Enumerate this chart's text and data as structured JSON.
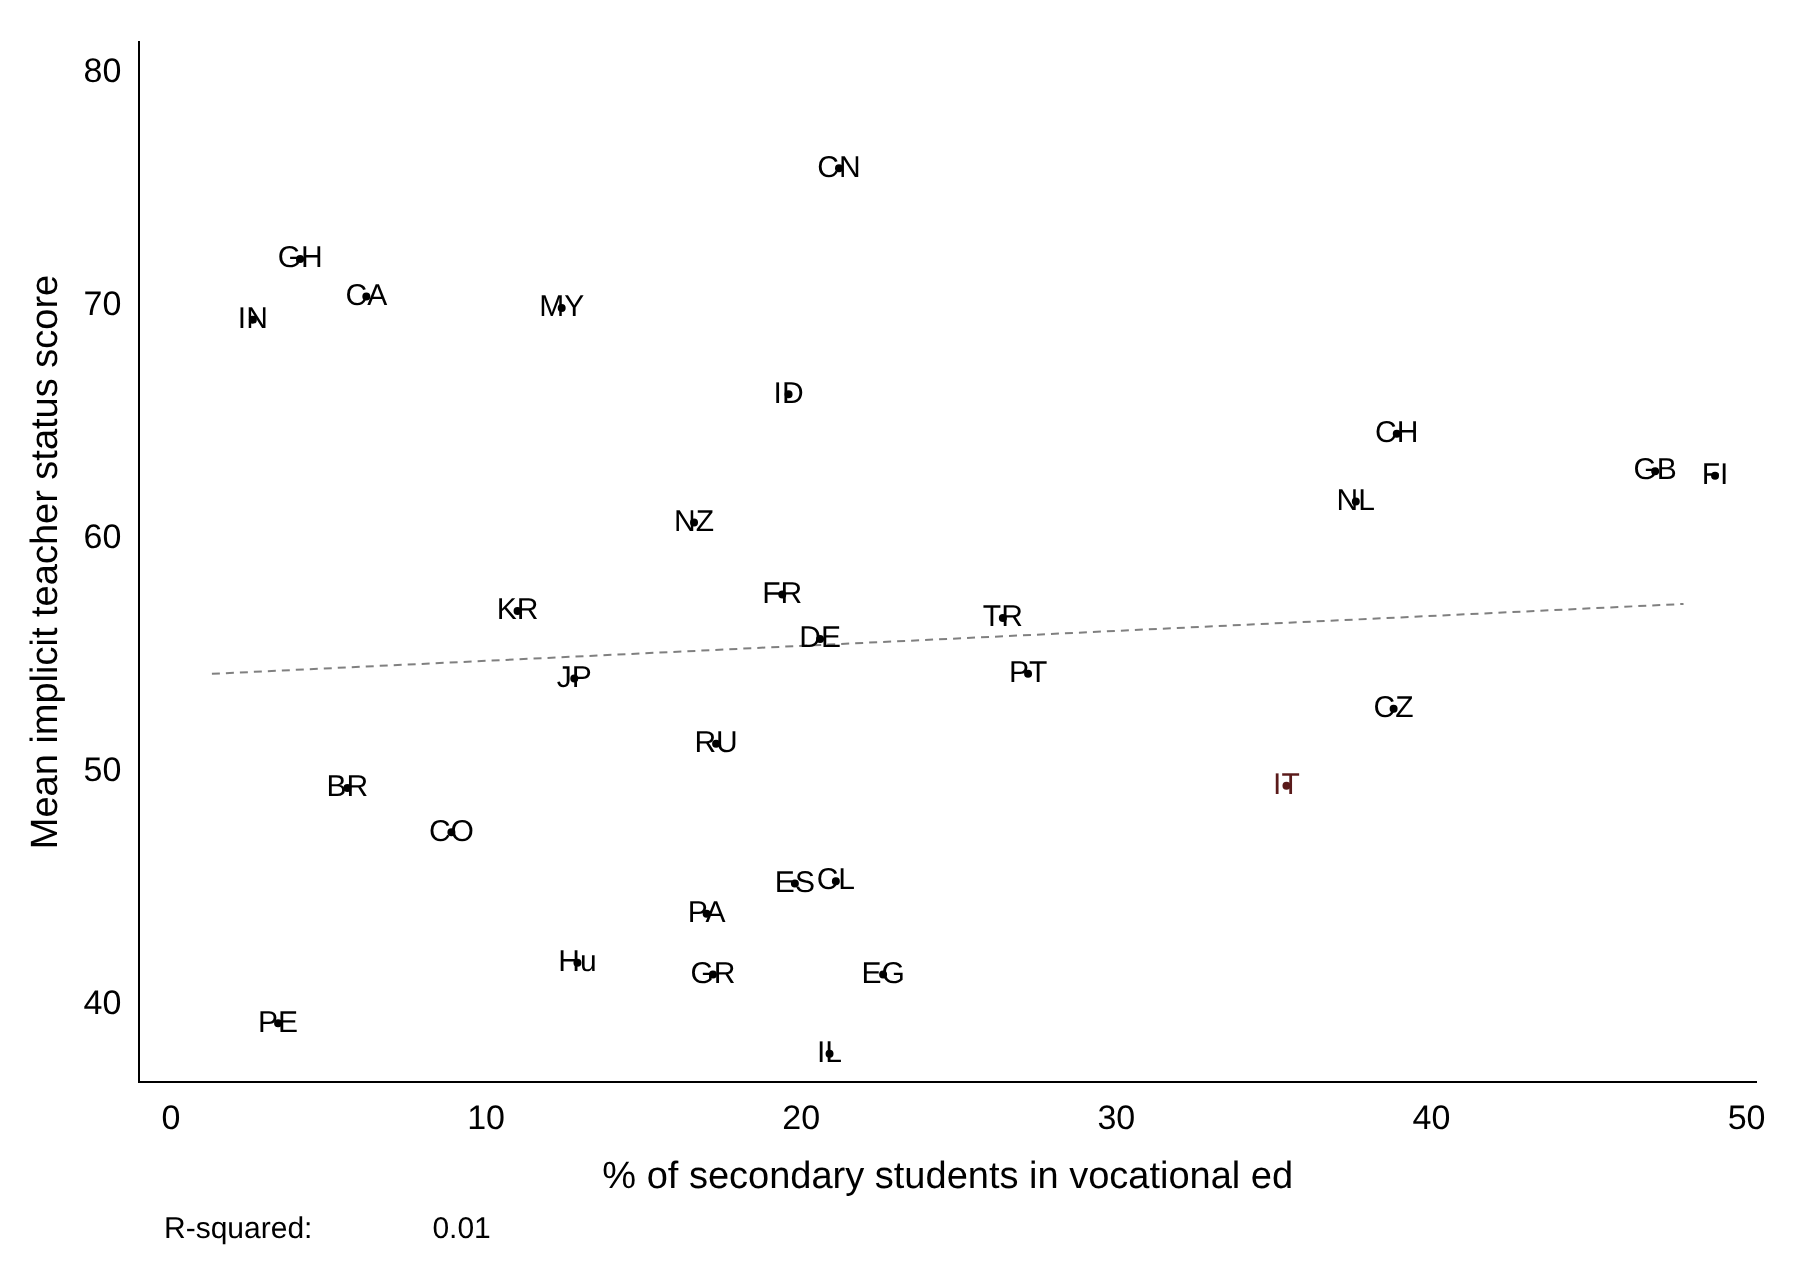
{
  "chart_data": {
    "type": "scatter",
    "xlabel": "% of secondary students in vocational ed",
    "ylabel": "Mean implicit teacher status score",
    "xlim": [
      -1,
      50.3
    ],
    "ylim": [
      36.7,
      81.3
    ],
    "xticks": [
      0,
      10,
      20,
      30,
      40,
      50
    ],
    "yticks": [
      40,
      50,
      60,
      70,
      80
    ],
    "grid": false,
    "legend": false,
    "annotations": [
      "R-squared:",
      "0.01"
    ],
    "series": [
      {
        "name": "CN",
        "color": "#000000",
        "x": [
          21.2
        ],
        "values": [
          75.9
        ]
      },
      {
        "name": "GH",
        "color": "#000000",
        "x": [
          4.1
        ],
        "values": [
          72.0
        ]
      },
      {
        "name": "CA",
        "color": "#000000",
        "x": [
          6.2
        ],
        "values": [
          70.4
        ]
      },
      {
        "name": "IN",
        "color": "#000000",
        "x": [
          2.6
        ],
        "values": [
          69.4
        ]
      },
      {
        "name": "MY",
        "color": "#000000",
        "x": [
          12.4
        ],
        "values": [
          69.9
        ]
      },
      {
        "name": "ID",
        "color": "#000000",
        "x": [
          19.6
        ],
        "values": [
          66.2
        ]
      },
      {
        "name": "CH",
        "color": "#000000",
        "x": [
          38.9
        ],
        "values": [
          64.5
        ]
      },
      {
        "name": "GB",
        "color": "#000000",
        "x": [
          47.1
        ],
        "values": [
          62.9
        ]
      },
      {
        "name": "FI",
        "color": "#000000",
        "x": [
          49.0
        ],
        "values": [
          62.7
        ]
      },
      {
        "name": "NL",
        "color": "#000000",
        "x": [
          37.6
        ],
        "values": [
          61.6
        ]
      },
      {
        "name": "NZ",
        "color": "#000000",
        "x": [
          16.6
        ],
        "values": [
          60.7
        ]
      },
      {
        "name": "FR",
        "color": "#000000",
        "x": [
          19.4
        ],
        "values": [
          57.6
        ]
      },
      {
        "name": "KR",
        "color": "#000000",
        "x": [
          11.0
        ],
        "values": [
          56.9
        ]
      },
      {
        "name": "TR",
        "color": "#000000",
        "x": [
          26.4
        ],
        "values": [
          56.6
        ]
      },
      {
        "name": "DE",
        "color": "#000000",
        "x": [
          20.6
        ],
        "values": [
          55.7
        ]
      },
      {
        "name": "JP",
        "color": "#000000",
        "x": [
          12.8
        ],
        "values": [
          54.0
        ]
      },
      {
        "name": "PT",
        "color": "#000000",
        "x": [
          27.2
        ],
        "values": [
          54.2
        ]
      },
      {
        "name": "CZ",
        "color": "#000000",
        "x": [
          38.8
        ],
        "values": [
          52.7
        ]
      },
      {
        "name": "RU",
        "color": "#000000",
        "x": [
          17.3
        ],
        "values": [
          51.2
        ]
      },
      {
        "name": "BR",
        "color": "#000000",
        "x": [
          5.6
        ],
        "values": [
          49.3
        ]
      },
      {
        "name": "IT",
        "color": "#5a1a1a",
        "x": [
          35.4
        ],
        "values": [
          49.4
        ]
      },
      {
        "name": "CO",
        "color": "#000000",
        "x": [
          8.9
        ],
        "values": [
          47.4
        ]
      },
      {
        "name": "ES",
        "color": "#000000",
        "x": [
          19.8
        ],
        "values": [
          45.2
        ]
      },
      {
        "name": "CL",
        "color": "#000000",
        "x": [
          21.1
        ],
        "values": [
          45.3
        ]
      },
      {
        "name": "PA",
        "color": "#000000",
        "x": [
          17.0
        ],
        "values": [
          43.9
        ]
      },
      {
        "name": "Hu",
        "color": "#000000",
        "x": [
          12.9
        ],
        "values": [
          41.8
        ]
      },
      {
        "name": "GR",
        "color": "#000000",
        "x": [
          17.2
        ],
        "values": [
          41.3
        ]
      },
      {
        "name": "EG",
        "color": "#000000",
        "x": [
          22.6
        ],
        "values": [
          41.3
        ]
      },
      {
        "name": "PE",
        "color": "#000000",
        "x": [
          3.4
        ],
        "values": [
          39.2
        ]
      },
      {
        "name": "IL",
        "color": "#000000",
        "x": [
          20.9
        ],
        "values": [
          37.9
        ]
      },
      {
        "type": "line",
        "color": "#808080",
        "line_style": "dashed",
        "x": [
          1.3,
          48
        ],
        "values": [
          54.2,
          57.2
        ]
      }
    ]
  }
}
